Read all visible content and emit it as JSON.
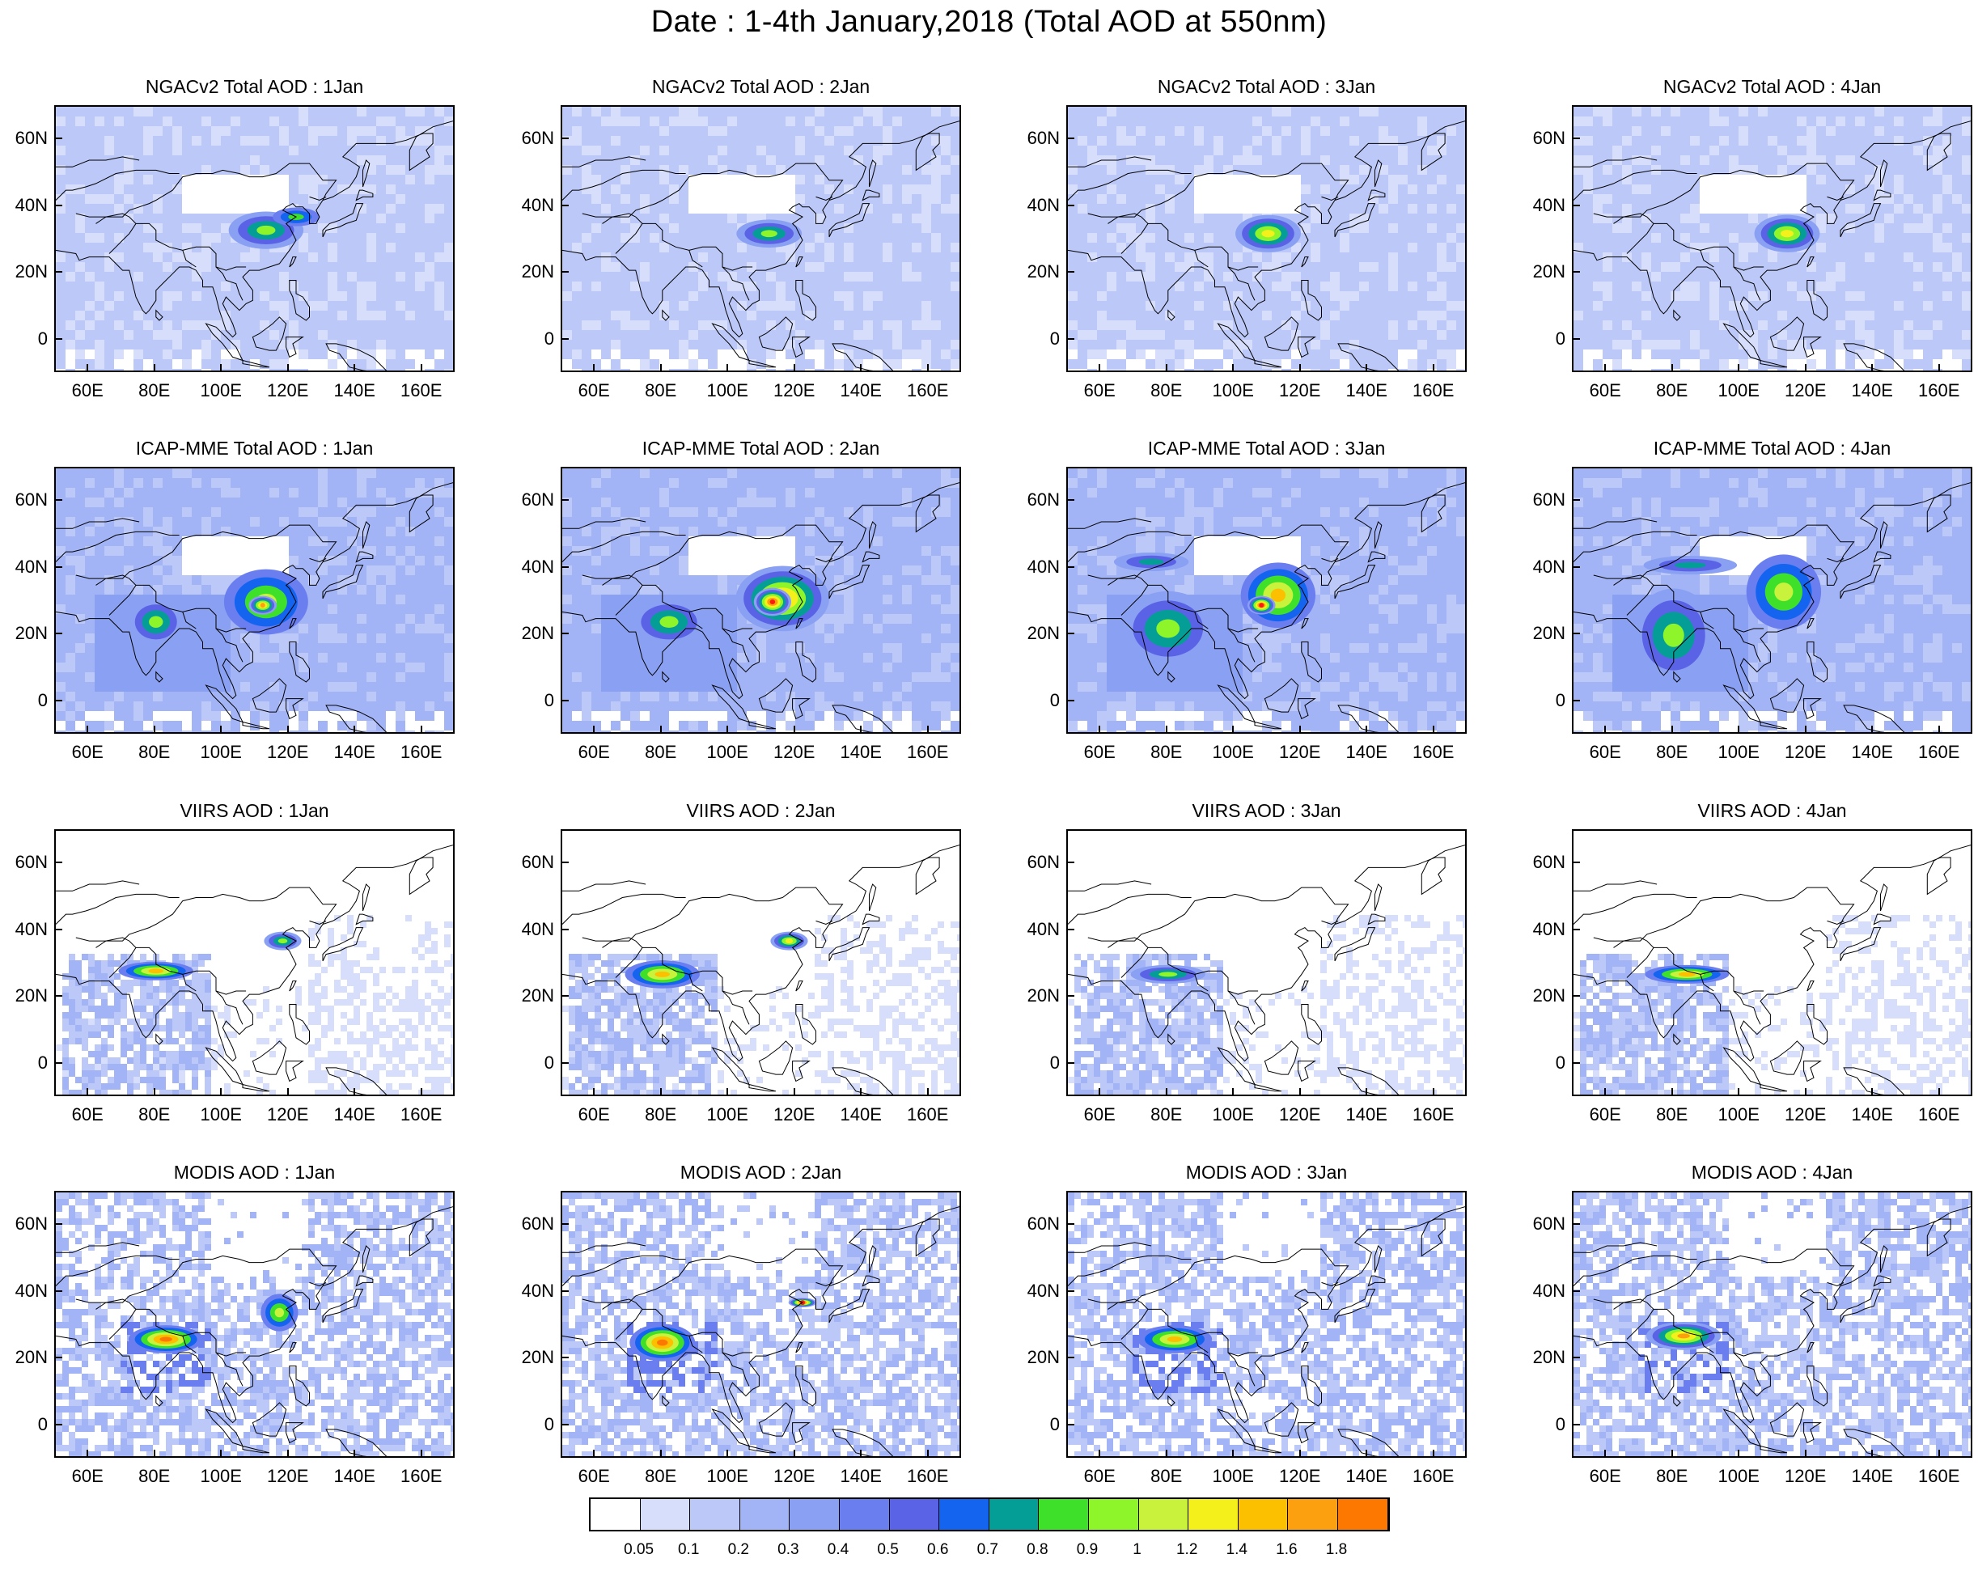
{
  "title": "Date : 1-4th January,2018 (Total AOD at 550nm)",
  "axes": {
    "x_ticks": [
      "60E",
      "80E",
      "100E",
      "120E",
      "140E",
      "160E"
    ],
    "x_values": [
      60,
      80,
      100,
      120,
      140,
      160
    ],
    "y_ticks": [
      "60N",
      "40N",
      "20N",
      "0"
    ],
    "y_values": [
      60,
      40,
      20,
      0
    ],
    "lon_range": [
      50,
      170
    ],
    "lat_range": [
      -10,
      70
    ]
  },
  "rows": [
    {
      "product": "NGACv2",
      "style": "smooth",
      "panels": [
        {
          "title": "NGACv2 Total AOD : 1Jan"
        },
        {
          "title": "NGACv2 Total AOD : 2Jan"
        },
        {
          "title": "NGACv2 Total AOD : 3Jan"
        },
        {
          "title": "NGACv2 Total AOD : 4Jan"
        }
      ]
    },
    {
      "product": "ICAP-MME",
      "style": "smooth",
      "panels": [
        {
          "title": "ICAP-MME Total AOD : 1Jan"
        },
        {
          "title": "ICAP-MME Total AOD : 2Jan"
        },
        {
          "title": "ICAP-MME Total AOD : 3Jan"
        },
        {
          "title": "ICAP-MME Total AOD : 4Jan"
        }
      ]
    },
    {
      "product": "VIIRS",
      "style": "sparse",
      "panels": [
        {
          "title": "VIIRS AOD : 1Jan"
        },
        {
          "title": "VIIRS AOD : 2Jan"
        },
        {
          "title": "VIIRS AOD : 3Jan"
        },
        {
          "title": "VIIRS AOD : 4Jan"
        }
      ]
    },
    {
      "product": "MODIS",
      "style": "patchy",
      "panels": [
        {
          "title": "MODIS AOD : 1Jan"
        },
        {
          "title": "MODIS AOD : 2Jan"
        },
        {
          "title": "MODIS AOD : 3Jan"
        },
        {
          "title": "MODIS AOD : 4Jan"
        }
      ]
    }
  ],
  "colorbar": {
    "labels": [
      "0.05",
      "0.1",
      "0.2",
      "0.3",
      "0.4",
      "0.5",
      "0.6",
      "0.7",
      "0.8",
      "0.9",
      "1",
      "1.2",
      "1.4",
      "1.6",
      "1.8"
    ],
    "colors": [
      "#ffffff",
      "#d6defb",
      "#bcc8f8",
      "#a3b4f6",
      "#8aa0f2",
      "#6a7ef0",
      "#5a63e6",
      "#1464f0",
      "#059e96",
      "#3ee02a",
      "#8ef52a",
      "#c8f23c",
      "#f4f01c",
      "#fcc000",
      "#fca010",
      "#fc7800",
      "#f81c10"
    ]
  },
  "features": {
    "rows": [
      [
        [
          {
            "lon": 113,
            "lat": 33,
            "rx": 8,
            "ry": 4,
            "level": 10
          },
          {
            "lon": 122,
            "lat": 37,
            "rx": 5,
            "ry": 2,
            "level": 9
          }
        ],
        [
          {
            "lon": 112,
            "lat": 32,
            "rx": 7,
            "ry": 3,
            "level": 10
          }
        ],
        [
          {
            "lon": 110,
            "lat": 32,
            "rx": 7,
            "ry": 4,
            "level": 12
          }
        ],
        [
          {
            "lon": 114,
            "lat": 32,
            "rx": 7,
            "ry": 4,
            "level": 12
          }
        ]
      ],
      [
        [
          {
            "lon": 80,
            "lat": 24,
            "rx": 6,
            "ry": 5,
            "level": 10
          },
          {
            "lon": 113,
            "lat": 30,
            "rx": 9,
            "ry": 7,
            "level": 11
          },
          {
            "lon": 112,
            "lat": 29,
            "rx": 3,
            "ry": 2,
            "level": 14
          }
        ],
        [
          {
            "lon": 82,
            "lat": 24,
            "rx": 8,
            "ry": 5,
            "level": 10
          },
          {
            "lon": 116,
            "lat": 31,
            "rx": 10,
            "ry": 7,
            "level": 14
          },
          {
            "lon": 113,
            "lat": 30,
            "rx": 4,
            "ry": 3,
            "level": 16
          }
        ],
        [
          {
            "lon": 80,
            "lat": 22,
            "rx": 10,
            "ry": 8,
            "level": 10
          },
          {
            "lon": 113,
            "lat": 32,
            "rx": 8,
            "ry": 7,
            "level": 13
          },
          {
            "lon": 108,
            "lat": 29,
            "rx": 3,
            "ry": 2,
            "level": 16
          },
          {
            "lon": 75,
            "lat": 42,
            "rx": 8,
            "ry": 2,
            "level": 8
          }
        ],
        [
          {
            "lon": 80,
            "lat": 20,
            "rx": 9,
            "ry": 10,
            "level": 10
          },
          {
            "lon": 113,
            "lat": 33,
            "rx": 8,
            "ry": 8,
            "level": 11
          },
          {
            "lon": 85,
            "lat": 41,
            "rx": 10,
            "ry": 2,
            "level": 8
          }
        ]
      ],
      [
        [
          {
            "lon": 80,
            "lat": 28,
            "rx": 8,
            "ry": 2,
            "level": 13
          },
          {
            "lon": 118,
            "lat": 37,
            "rx": 4,
            "ry": 2,
            "level": 10
          }
        ],
        [
          {
            "lon": 80,
            "lat": 27,
            "rx": 8,
            "ry": 3,
            "level": 13
          },
          {
            "lon": 118,
            "lat": 37,
            "rx": 4,
            "ry": 2,
            "level": 12
          }
        ],
        [
          {
            "lon": 80,
            "lat": 27,
            "rx": 8,
            "ry": 2,
            "level": 10
          }
        ],
        [
          {
            "lon": 84,
            "lat": 27,
            "rx": 9,
            "ry": 2,
            "level": 13
          }
        ]
      ],
      [
        [
          {
            "lon": 83,
            "lat": 26,
            "rx": 8,
            "ry": 3,
            "level": 15
          },
          {
            "lon": 117,
            "lat": 34,
            "rx": 4,
            "ry": 4,
            "level": 11
          }
        ],
        [
          {
            "lon": 80,
            "lat": 25,
            "rx": 7,
            "ry": 4,
            "level": 15
          },
          {
            "lon": 122,
            "lat": 37,
            "rx": 3,
            "ry": 1,
            "level": 16
          }
        ],
        [
          {
            "lon": 82,
            "lat": 26,
            "rx": 8,
            "ry": 3,
            "level": 13
          }
        ],
        [
          {
            "lon": 83,
            "lat": 27,
            "rx": 8,
            "ry": 3,
            "level": 14
          }
        ]
      ]
    ]
  }
}
